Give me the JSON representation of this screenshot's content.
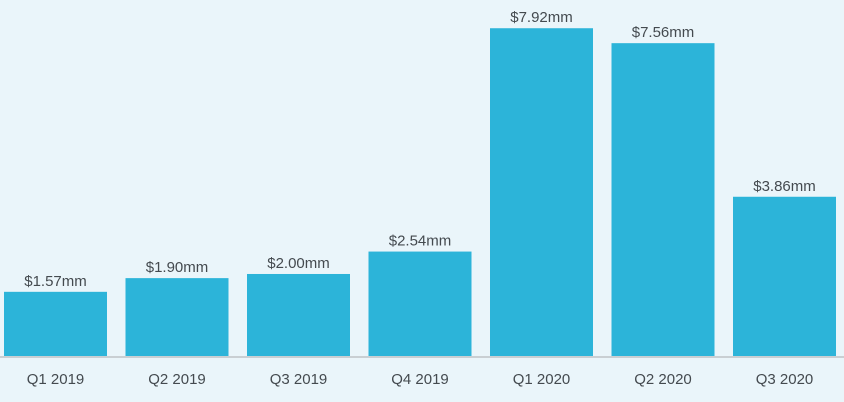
{
  "chart_data": {
    "type": "bar",
    "categories": [
      "Q1 2019",
      "Q2 2019",
      "Q3 2019",
      "Q4 2019",
      "Q1 2020",
      "Q2 2020",
      "Q3 2020"
    ],
    "values": [
      1.57,
      1.9,
      2.0,
      2.54,
      7.92,
      7.56,
      3.86
    ],
    "data_labels": [
      "$1.57mm",
      "$1.90mm",
      "$2.00mm",
      "$2.54mm",
      "$7.92mm",
      "$7.56mm",
      "$3.86mm"
    ],
    "ylim": [
      0,
      8.6
    ],
    "grid": false,
    "colors": {
      "bar": "#2cb4d9",
      "background": "#eaf5fa",
      "axis": "#c9cfd3",
      "text": "#444a4f"
    }
  }
}
